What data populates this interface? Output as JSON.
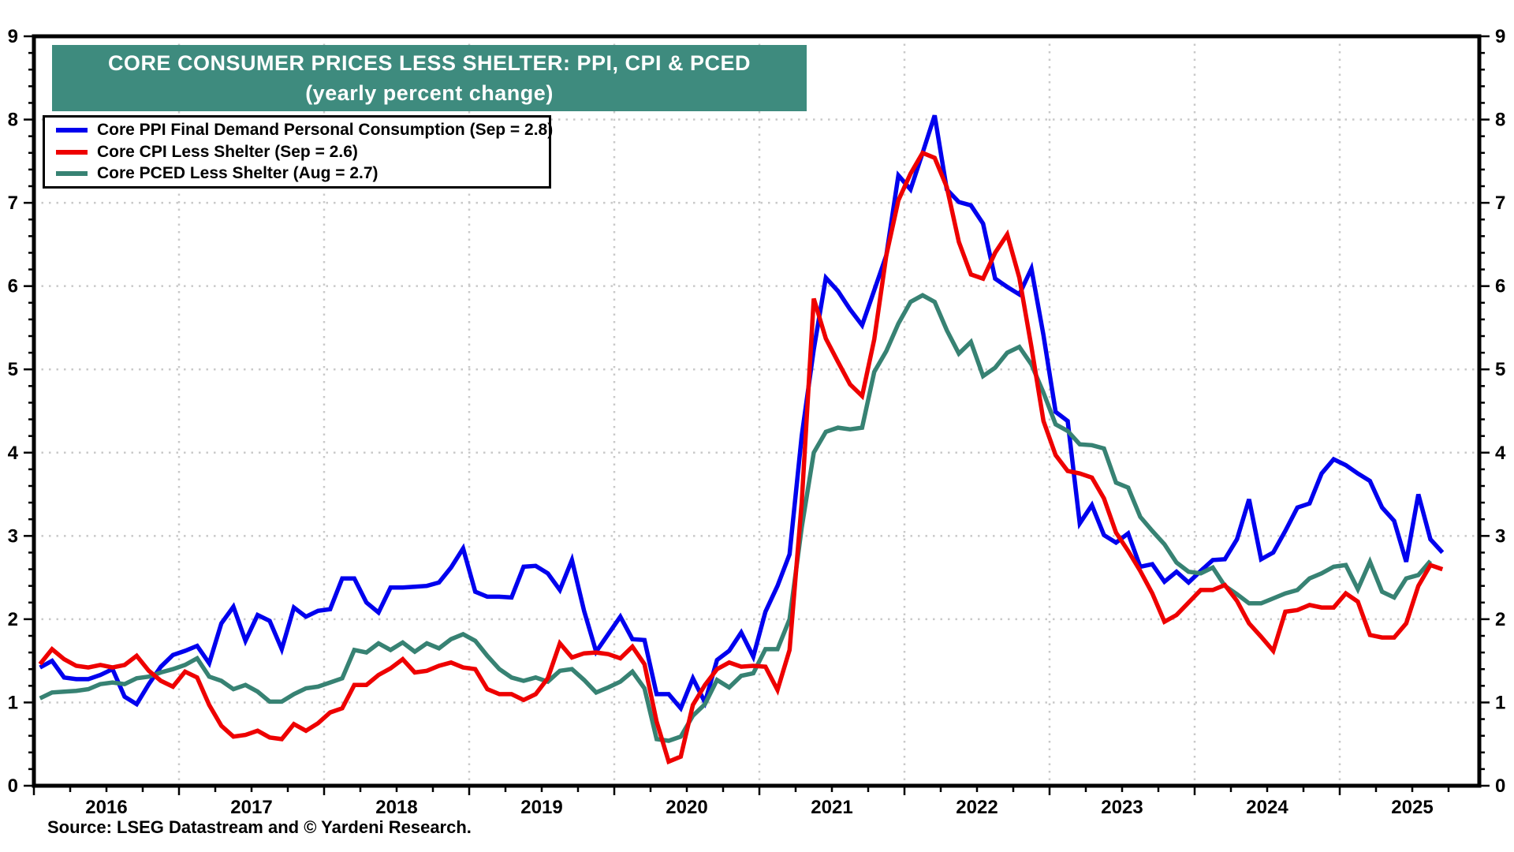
{
  "title": {
    "line1": "CORE CONSUMER PRICES LESS SHELTER: PPI, CPI & PCED",
    "line2": "(yearly percent change)",
    "band_color": "#3E8B7E"
  },
  "source": {
    "text": "Source: LSEG Datastream and © Yardeni Research."
  },
  "colors": {
    "ppi_line": "#0000EE",
    "cpi_line": "#EE0000",
    "pced_line": "#378273",
    "grid": "#C9C9C9",
    "axis": "#000000",
    "background": "#FFFFFF"
  },
  "chart_data": {
    "type": "line",
    "title": "CORE CONSUMER PRICES LESS SHELTER: PPI, CPI & PCED (yearly percent change)",
    "ylabel": "yearly percent change",
    "ylim": [
      0,
      9
    ],
    "yticks": [
      0,
      1,
      2,
      3,
      4,
      5,
      6,
      7,
      8,
      9
    ],
    "y_axis_labels_both_sides": true,
    "grid": "dotted",
    "legend_position": "top-left",
    "x_year_labels": [
      "2016",
      "2017",
      "2018",
      "2019",
      "2020",
      "2021",
      "2022",
      "2023",
      "2024",
      "2025"
    ],
    "x_monthly_start": "2016-01",
    "series": [
      {
        "name": "Core PPI Final Demand Personal Consumption",
        "legend_label": "Core PPI Final Demand Personal Consumption (Sep = 2.8)",
        "last_point": {
          "month": "2025-09",
          "value": 2.8
        },
        "color": "#0000EE",
        "end": "2025-09",
        "values": [
          1.42,
          1.5,
          1.3,
          1.28,
          1.28,
          1.33,
          1.4,
          1.07,
          0.98,
          1.22,
          1.43,
          1.57,
          1.62,
          1.68,
          1.47,
          1.95,
          2.15,
          1.74,
          2.05,
          1.98,
          1.64,
          2.14,
          2.03,
          2.1,
          2.12,
          2.49,
          2.49,
          2.2,
          2.08,
          2.38,
          2.38,
          2.39,
          2.4,
          2.44,
          2.62,
          2.85,
          2.33,
          2.27,
          2.27,
          2.26,
          2.63,
          2.64,
          2.55,
          2.35,
          2.71,
          2.1,
          1.61,
          1.82,
          2.03,
          1.76,
          1.75,
          1.1,
          1.1,
          0.93,
          1.29,
          1.0,
          1.51,
          1.62,
          1.84,
          1.55,
          2.09,
          2.4,
          2.78,
          4.2,
          5.24,
          6.1,
          5.94,
          5.72,
          5.53,
          5.95,
          6.37,
          7.33,
          7.16,
          7.6,
          8.05,
          7.16,
          7.01,
          6.97,
          6.75,
          6.09,
          5.99,
          5.9,
          6.21,
          5.41,
          4.49,
          4.38,
          3.15,
          3.37,
          3.01,
          2.92,
          3.03,
          2.63,
          2.66,
          2.45,
          2.57,
          2.44,
          2.58,
          2.71,
          2.72,
          2.96,
          3.44,
          2.72,
          2.8,
          3.06,
          3.34,
          3.39,
          3.75,
          3.92,
          3.85,
          3.75,
          3.66,
          3.34,
          3.18,
          2.69,
          3.5,
          2.96,
          2.8
        ]
      },
      {
        "name": "Core CPI Less Shelter",
        "legend_label": "Core CPI Less Shelter (Sep = 2.6)",
        "last_point": {
          "month": "2025-09",
          "value": 2.6
        },
        "color": "#EE0000",
        "end": "2025-09",
        "values": [
          1.46,
          1.64,
          1.52,
          1.44,
          1.42,
          1.45,
          1.42,
          1.45,
          1.56,
          1.38,
          1.26,
          1.19,
          1.37,
          1.3,
          0.97,
          0.72,
          0.59,
          0.61,
          0.66,
          0.58,
          0.56,
          0.74,
          0.66,
          0.75,
          0.88,
          0.93,
          1.21,
          1.21,
          1.33,
          1.41,
          1.52,
          1.36,
          1.38,
          1.44,
          1.48,
          1.42,
          1.4,
          1.16,
          1.1,
          1.1,
          1.03,
          1.1,
          1.29,
          1.71,
          1.54,
          1.59,
          1.6,
          1.58,
          1.53,
          1.67,
          1.46,
          0.77,
          0.29,
          0.35,
          0.97,
          1.21,
          1.4,
          1.48,
          1.43,
          1.44,
          1.43,
          1.15,
          1.63,
          3.4,
          5.85,
          5.37,
          5.09,
          4.82,
          4.68,
          5.36,
          6.37,
          7.03,
          7.35,
          7.6,
          7.54,
          7.19,
          6.53,
          6.14,
          6.09,
          6.4,
          6.62,
          6.1,
          5.27,
          4.38,
          3.97,
          3.78,
          3.75,
          3.7,
          3.45,
          3.04,
          2.82,
          2.58,
          2.31,
          1.97,
          2.05,
          2.2,
          2.35,
          2.35,
          2.41,
          2.22,
          1.95,
          1.79,
          1.62,
          2.09,
          2.11,
          2.17,
          2.14,
          2.14,
          2.31,
          2.21,
          1.81,
          1.78,
          1.78,
          1.95,
          2.4,
          2.65,
          2.6
        ]
      },
      {
        "name": "Core PCED Less Shelter",
        "legend_label": "Core PCED Less Shelter (Aug = 2.7)",
        "last_point": {
          "month": "2025-08",
          "value": 2.7
        },
        "color": "#378273",
        "end": "2025-08",
        "values": [
          1.05,
          1.12,
          1.13,
          1.14,
          1.16,
          1.22,
          1.24,
          1.22,
          1.29,
          1.31,
          1.36,
          1.4,
          1.45,
          1.53,
          1.31,
          1.26,
          1.16,
          1.21,
          1.13,
          1.01,
          1.01,
          1.1,
          1.17,
          1.19,
          1.24,
          1.29,
          1.63,
          1.6,
          1.71,
          1.63,
          1.72,
          1.61,
          1.71,
          1.65,
          1.76,
          1.82,
          1.74,
          1.56,
          1.4,
          1.3,
          1.26,
          1.3,
          1.25,
          1.38,
          1.4,
          1.27,
          1.12,
          1.18,
          1.25,
          1.37,
          1.17,
          0.56,
          0.54,
          0.59,
          0.84,
          0.98,
          1.27,
          1.18,
          1.32,
          1.35,
          1.64,
          1.64,
          2.0,
          3.1,
          4.0,
          4.25,
          4.3,
          4.28,
          4.3,
          4.97,
          5.22,
          5.55,
          5.81,
          5.89,
          5.81,
          5.47,
          5.19,
          5.33,
          4.92,
          5.02,
          5.2,
          5.27,
          5.06,
          4.72,
          4.34,
          4.26,
          4.1,
          4.09,
          4.05,
          3.64,
          3.58,
          3.23,
          3.06,
          2.9,
          2.68,
          2.57,
          2.55,
          2.62,
          2.4,
          2.3,
          2.19,
          2.19,
          2.25,
          2.31,
          2.35,
          2.49,
          2.55,
          2.63,
          2.65,
          2.36,
          2.69,
          2.33,
          2.26,
          2.49,
          2.53,
          2.7
        ]
      }
    ]
  }
}
